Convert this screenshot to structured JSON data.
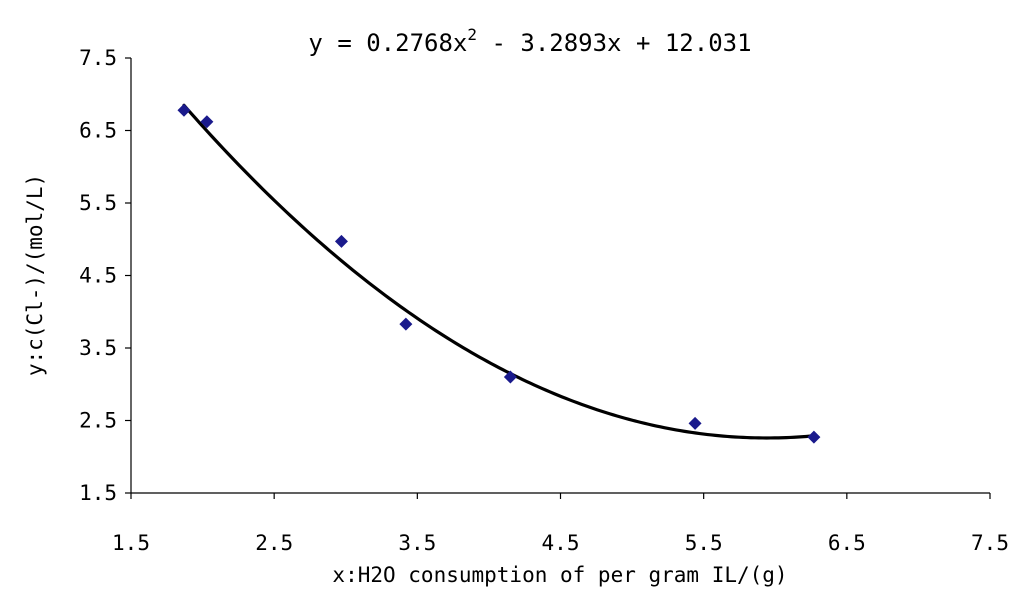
{
  "chart_data": {
    "type": "scatter",
    "title": "",
    "equation": {
      "prefix": "y = 0.2768x",
      "superscript": "2",
      "suffix": " - 3.2893x + 12.031"
    },
    "xlabel": "x:H2O consumption of per gram IL/(g)",
    "ylabel": "y:c(Cl-)/(mol/L)",
    "xlim": [
      1.5,
      7.5
    ],
    "ylim": [
      1.5,
      7.5
    ],
    "xticks": [
      "1.5",
      "2.5",
      "3.5",
      "4.5",
      "5.5",
      "6.5",
      "7.5"
    ],
    "yticks": [
      "1.5",
      "2.5",
      "3.5",
      "4.5",
      "5.5",
      "6.5",
      "7.5"
    ],
    "grid": false,
    "legend": "none",
    "series": [
      {
        "marker": "diamond",
        "color": "#1a1a8c",
        "x": [
          1.87,
          2.03,
          2.97,
          3.42,
          4.15,
          5.44,
          6.27
        ],
        "y": [
          6.78,
          6.62,
          4.97,
          3.83,
          3.1,
          2.46,
          2.27
        ]
      }
    ],
    "trendline": {
      "kind": "polynomial-2",
      "color": "#000000",
      "coefficients": [
        0.2768,
        -3.2893,
        12.031
      ],
      "x_range": [
        1.87,
        6.27
      ]
    }
  }
}
